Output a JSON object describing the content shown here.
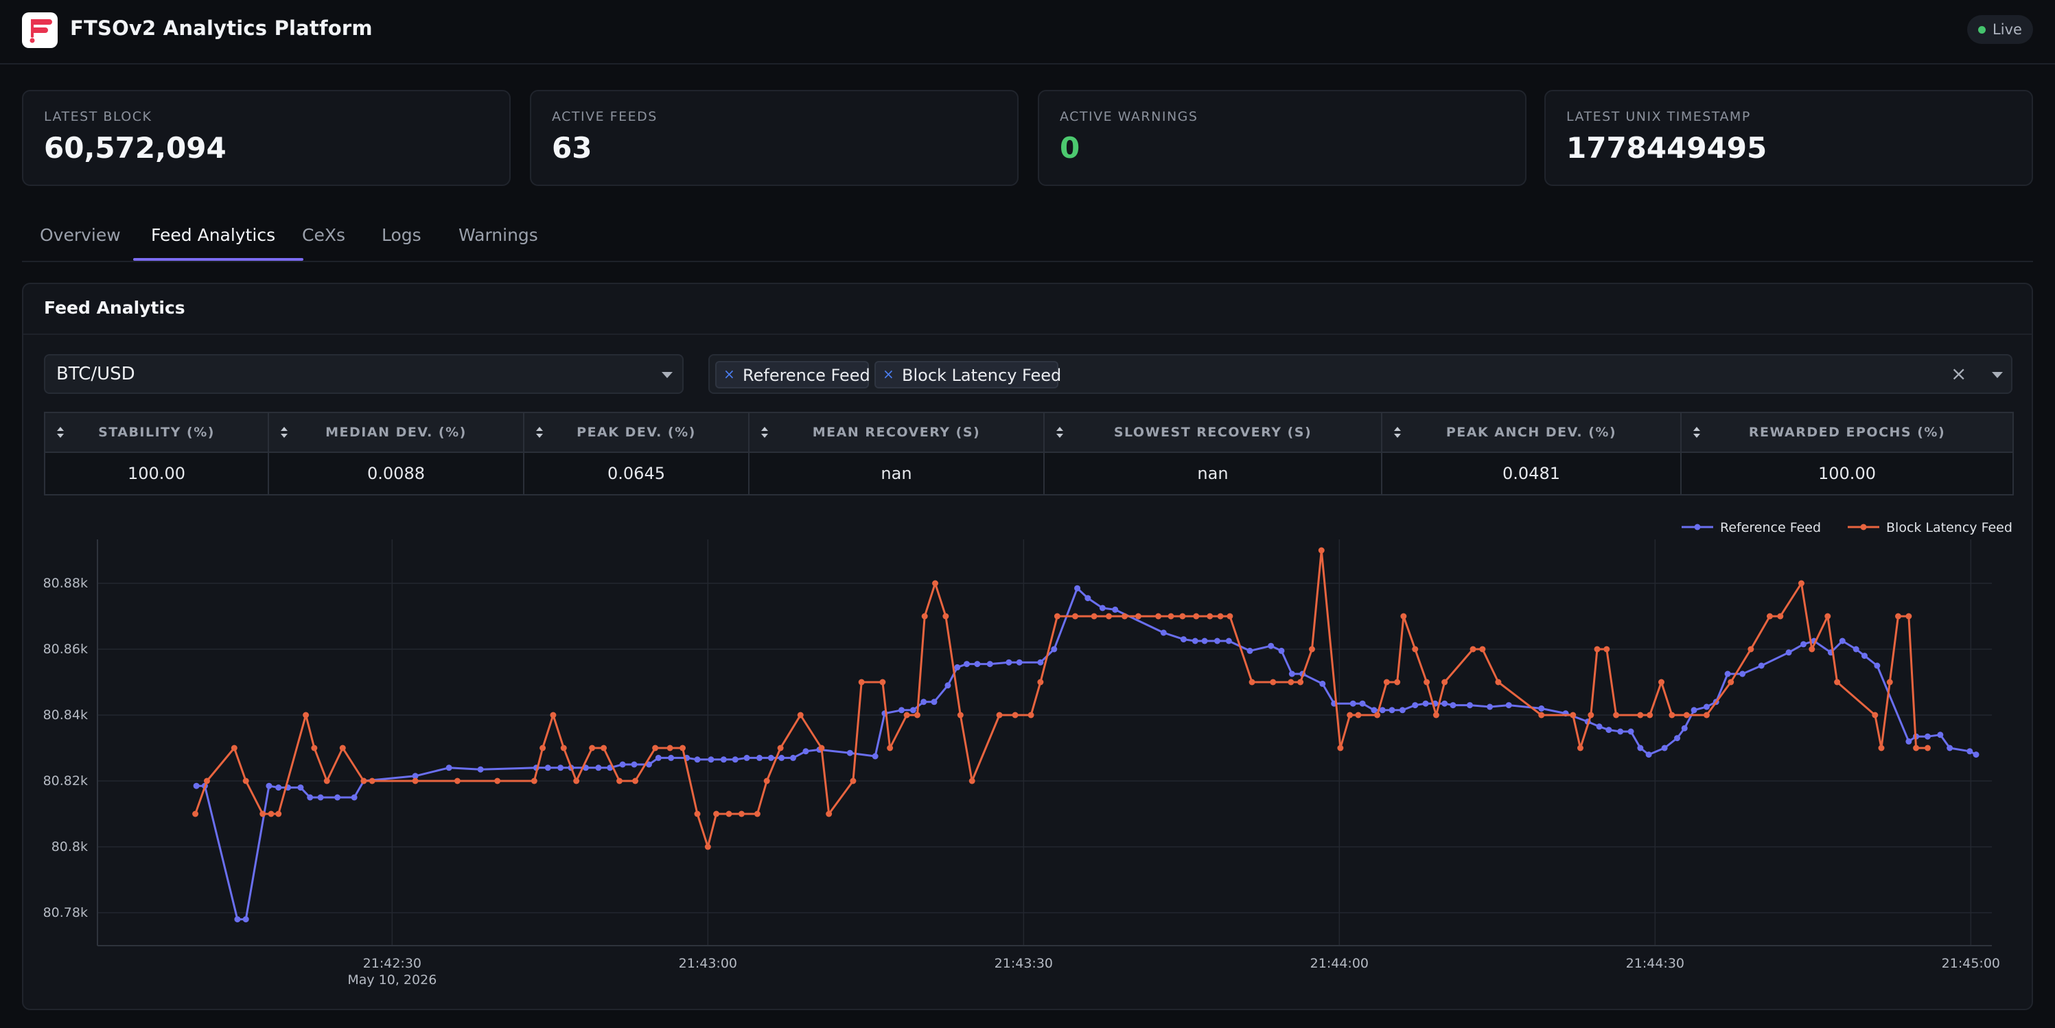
{
  "header": {
    "app_title": "FTSOv2 Analytics Platform",
    "live_label": "Live",
    "live_color": "#45c46d",
    "logo_icon": "ftso-logo"
  },
  "stats": [
    {
      "label": "LATEST BLOCK",
      "value": "60,572,094"
    },
    {
      "label": "ACTIVE FEEDS",
      "value": "63"
    },
    {
      "label": "ACTIVE WARNINGS",
      "value": "0"
    },
    {
      "label": "LATEST UNIX TIMESTAMP",
      "value": "1778449495"
    }
  ],
  "tabs": [
    {
      "label": "Overview"
    },
    {
      "label": "Feed Analytics",
      "active": true
    },
    {
      "label": "CeXs"
    },
    {
      "label": "Logs"
    },
    {
      "label": "Warnings"
    }
  ],
  "panel": {
    "title": "Feed Analytics",
    "feed_select": {
      "value": "BTC/USD"
    },
    "feed_types": {
      "chips": [
        {
          "label": "Reference Feed"
        },
        {
          "label": "Block Latency Feed"
        }
      ],
      "clear_icon": "close-icon",
      "dropdown_icon": "chevron-down-icon"
    }
  },
  "table": {
    "columns": [
      "STABILITY (%)",
      "MEDIAN DEV. (%)",
      "PEAK DEV. (%)",
      "MEAN RECOVERY (S)",
      "SLOWEST RECOVERY (S)",
      "PEAK ANCH DEV. (%)",
      "REWARDED EPOCHS (%)"
    ],
    "rows": [
      [
        "100.00",
        "0.0088",
        "0.0645",
        "nan",
        "nan",
        "0.0481",
        "100.00"
      ]
    ]
  },
  "colors": {
    "accent": "#7c6cf2",
    "reference": "#6a6ff0",
    "block_latency": "#e8643f",
    "ok": "#4cc96f"
  },
  "chart_data": {
    "type": "line",
    "x_unit": "time",
    "y_tick_values": [
      80780,
      80800,
      80820,
      80840,
      80860,
      80880
    ],
    "y_tick_labels": [
      "80.78k",
      "80.8k",
      "80.82k",
      "80.84k",
      "80.86k",
      "80.88k"
    ],
    "ylim": [
      80770,
      80890
    ],
    "x_tick_labels": [
      "21:42:30",
      "21:43:00",
      "21:43:30",
      "21:44:00",
      "21:44:30",
      "21:45:00"
    ],
    "x_tick_seconds": [
      30,
      60,
      90,
      120,
      150,
      180
    ],
    "x_sublabel": "May 10, 2026",
    "xlim_seconds": [
      2,
      182
    ],
    "legend_position": "top-right",
    "grid": true,
    "series": [
      {
        "name": "Reference Feed",
        "color": "#6a6ff0",
        "points": [
          [
            11.4,
            80818.5
          ],
          [
            12.2,
            80818.5
          ],
          [
            15.3,
            80778
          ],
          [
            16.1,
            80778
          ],
          [
            18.3,
            80818.5
          ],
          [
            19.2,
            80818
          ],
          [
            20.1,
            80818
          ],
          [
            21.3,
            80818
          ],
          [
            22.2,
            80815
          ],
          [
            23.2,
            80815
          ],
          [
            24.8,
            80815
          ],
          [
            26.4,
            80815
          ],
          [
            27.3,
            80820
          ],
          [
            32.2,
            80821.5
          ],
          [
            35.4,
            80824
          ],
          [
            38.4,
            80823.5
          ],
          [
            43.7,
            80824
          ],
          [
            44.8,
            80824
          ],
          [
            46.0,
            80824
          ],
          [
            47.0,
            80824
          ],
          [
            48.4,
            80824
          ],
          [
            49.6,
            80824
          ],
          [
            50.7,
            80824
          ],
          [
            51.9,
            80825
          ],
          [
            53.0,
            80825
          ],
          [
            54.4,
            80825
          ],
          [
            55.3,
            80827
          ],
          [
            56.5,
            80827
          ],
          [
            58.0,
            80827
          ],
          [
            59.0,
            80826.5
          ],
          [
            60.3,
            80826.5
          ],
          [
            61.5,
            80826.5
          ],
          [
            62.6,
            80826.5
          ],
          [
            63.7,
            80827
          ],
          [
            64.9,
            80827
          ],
          [
            66.0,
            80827
          ],
          [
            67.0,
            80827
          ],
          [
            68.1,
            80827
          ],
          [
            69.3,
            80829
          ],
          [
            70.6,
            80829.5
          ],
          [
            73.5,
            80828.5
          ],
          [
            75.9,
            80827.5
          ],
          [
            76.8,
            80840.5
          ],
          [
            78.4,
            80841.5
          ],
          [
            79.5,
            80841.5
          ],
          [
            80.5,
            80844
          ],
          [
            81.5,
            80844
          ],
          [
            82.8,
            80849
          ],
          [
            83.7,
            80854.5
          ],
          [
            84.6,
            80855.5
          ],
          [
            85.6,
            80855.5
          ],
          [
            86.8,
            80855.5
          ],
          [
            88.6,
            80856
          ],
          [
            89.6,
            80856
          ],
          [
            91.6,
            80856
          ],
          [
            92.9,
            80860
          ],
          [
            95.1,
            80878.5
          ],
          [
            96.1,
            80875.5
          ],
          [
            97.5,
            80872.5
          ],
          [
            98.7,
            80872
          ],
          [
            103.3,
            80865
          ],
          [
            105.2,
            80863
          ],
          [
            106.3,
            80862.5
          ],
          [
            107.2,
            80862.5
          ],
          [
            108.4,
            80862.5
          ],
          [
            109.5,
            80862.5
          ],
          [
            111.5,
            80859.5
          ],
          [
            113.5,
            80861
          ],
          [
            114.5,
            80859.5
          ],
          [
            115.5,
            80852.5
          ],
          [
            116.5,
            80852.5
          ],
          [
            118.4,
            80849.5
          ],
          [
            119.5,
            80843.5
          ],
          [
            121.3,
            80843.5
          ],
          [
            122.2,
            80843.5
          ],
          [
            123.3,
            80841.5
          ],
          [
            124.1,
            80841.5
          ],
          [
            125.0,
            80841.5
          ],
          [
            126.0,
            80841.5
          ],
          [
            127.2,
            80843
          ],
          [
            128.2,
            80843.5
          ],
          [
            129.1,
            80843.5
          ],
          [
            130.0,
            80843.5
          ],
          [
            130.8,
            80843
          ],
          [
            132.4,
            80843
          ],
          [
            134.3,
            80842.5
          ],
          [
            136.1,
            80843
          ],
          [
            139.2,
            80842
          ],
          [
            141.5,
            80840.5
          ],
          [
            143.6,
            80838
          ],
          [
            144.7,
            80836.5
          ],
          [
            145.6,
            80835.5
          ],
          [
            146.7,
            80835
          ],
          [
            147.7,
            80835
          ],
          [
            148.6,
            80830
          ],
          [
            149.4,
            80828
          ],
          [
            150.9,
            80830
          ],
          [
            152.1,
            80833
          ],
          [
            152.8,
            80836
          ],
          [
            153.7,
            80841.5
          ],
          [
            154.9,
            80842.5
          ],
          [
            155.8,
            80844
          ],
          [
            156.9,
            80852.5
          ],
          [
            158.3,
            80852.5
          ],
          [
            160.1,
            80855
          ],
          [
            162.7,
            80859
          ],
          [
            164.1,
            80861.5
          ],
          [
            165.1,
            80862.5
          ],
          [
            166.7,
            80859
          ],
          [
            167.8,
            80862.5
          ],
          [
            169.1,
            80860
          ],
          [
            169.9,
            80858
          ],
          [
            171.1,
            80855
          ],
          [
            174.1,
            80832
          ],
          [
            174.8,
            80833.5
          ],
          [
            175.9,
            80833.5
          ],
          [
            177.1,
            80834
          ],
          [
            178.0,
            80830
          ],
          [
            179.9,
            80829
          ],
          [
            180.5,
            80828
          ]
        ]
      },
      {
        "name": "Block Latency Feed",
        "color": "#e8643f",
        "points": [
          [
            11.3,
            80810
          ],
          [
            12.4,
            80820
          ],
          [
            15.0,
            80830
          ],
          [
            16.1,
            80820
          ],
          [
            17.7,
            80810
          ],
          [
            18.5,
            80810
          ],
          [
            19.2,
            80810
          ],
          [
            21.8,
            80840
          ],
          [
            22.6,
            80830
          ],
          [
            23.8,
            80820
          ],
          [
            25.3,
            80830
          ],
          [
            27.3,
            80820
          ],
          [
            28.1,
            80820
          ],
          [
            32.2,
            80820
          ],
          [
            36.2,
            80820
          ],
          [
            40.0,
            80820
          ],
          [
            43.5,
            80820
          ],
          [
            44.3,
            80830
          ],
          [
            45.3,
            80840
          ],
          [
            46.3,
            80830
          ],
          [
            47.5,
            80820
          ],
          [
            49.0,
            80830
          ],
          [
            50.1,
            80830
          ],
          [
            51.6,
            80820
          ],
          [
            53.1,
            80820
          ],
          [
            55.0,
            80830
          ],
          [
            56.4,
            80830
          ],
          [
            57.6,
            80830
          ],
          [
            59.0,
            80810
          ],
          [
            60.0,
            80800
          ],
          [
            60.8,
            80810
          ],
          [
            62.0,
            80810
          ],
          [
            63.2,
            80810
          ],
          [
            64.7,
            80810
          ],
          [
            65.6,
            80820
          ],
          [
            66.9,
            80830
          ],
          [
            68.8,
            80840
          ],
          [
            70.8,
            80830
          ],
          [
            71.5,
            80810
          ],
          [
            73.8,
            80820
          ],
          [
            74.6,
            80850
          ],
          [
            76.6,
            80850
          ],
          [
            77.3,
            80830
          ],
          [
            78.9,
            80840
          ],
          [
            79.9,
            80840
          ],
          [
            80.6,
            80870
          ],
          [
            81.6,
            80880
          ],
          [
            82.6,
            80870
          ],
          [
            84.0,
            80840
          ],
          [
            85.1,
            80820
          ],
          [
            87.7,
            80840
          ],
          [
            89.2,
            80840
          ],
          [
            90.7,
            80840
          ],
          [
            91.6,
            80850
          ],
          [
            93.2,
            80870
          ],
          [
            94.9,
            80870
          ],
          [
            96.7,
            80870
          ],
          [
            98.1,
            80870
          ],
          [
            99.6,
            80870
          ],
          [
            100.9,
            80870
          ],
          [
            102.8,
            80870
          ],
          [
            104.0,
            80870
          ],
          [
            105.1,
            80870
          ],
          [
            106.4,
            80870
          ],
          [
            107.7,
            80870
          ],
          [
            108.7,
            80870
          ],
          [
            109.6,
            80870
          ],
          [
            111.7,
            80850
          ],
          [
            113.7,
            80850
          ],
          [
            115.4,
            80850
          ],
          [
            116.3,
            80850
          ],
          [
            117.4,
            80860
          ],
          [
            118.3,
            80890
          ],
          [
            120.1,
            80830
          ],
          [
            121.0,
            80840
          ],
          [
            121.8,
            80840
          ],
          [
            123.6,
            80840
          ],
          [
            124.5,
            80850
          ],
          [
            125.5,
            80850
          ],
          [
            126.1,
            80870
          ],
          [
            127.2,
            80860
          ],
          [
            128.3,
            80850
          ],
          [
            129.2,
            80840
          ],
          [
            130.0,
            80850
          ],
          [
            132.7,
            80860
          ],
          [
            133.6,
            80860
          ],
          [
            135.1,
            80850
          ],
          [
            139.2,
            80840
          ],
          [
            142.2,
            80840
          ],
          [
            142.9,
            80830
          ],
          [
            143.9,
            80840
          ],
          [
            144.5,
            80860
          ],
          [
            145.4,
            80860
          ],
          [
            146.3,
            80840
          ],
          [
            148.6,
            80840
          ],
          [
            149.5,
            80840
          ],
          [
            150.6,
            80850
          ],
          [
            151.6,
            80840
          ],
          [
            153.0,
            80840
          ],
          [
            154.9,
            80840
          ],
          [
            157.2,
            80850
          ],
          [
            159.1,
            80860
          ],
          [
            160.9,
            80870
          ],
          [
            161.9,
            80870
          ],
          [
            163.9,
            80880
          ],
          [
            164.9,
            80860
          ],
          [
            166.4,
            80870
          ],
          [
            167.3,
            80850
          ],
          [
            170.9,
            80840
          ],
          [
            171.5,
            80830
          ],
          [
            172.3,
            80850
          ],
          [
            173.1,
            80870
          ],
          [
            174.1,
            80870
          ],
          [
            174.8,
            80830
          ],
          [
            175.9,
            80830
          ]
        ]
      }
    ]
  }
}
